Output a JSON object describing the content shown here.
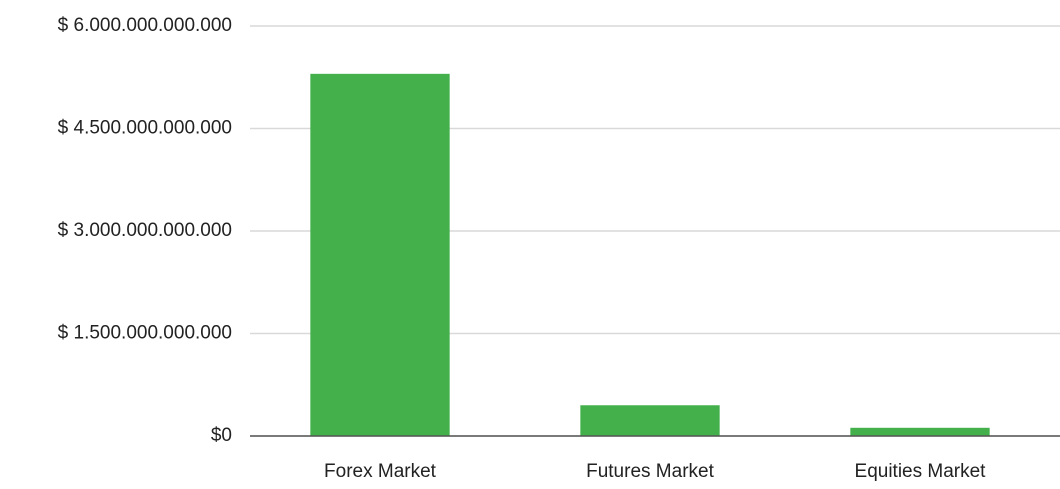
{
  "chart_data": {
    "type": "bar",
    "categories": [
      "Forex Market",
      "Futures Market",
      "Equities Market"
    ],
    "values": [
      5300000000000,
      450000000000,
      120000000000
    ],
    "color": "#43b04b",
    "ylim": [
      0,
      6000000000000
    ],
    "yticks": [
      {
        "value": 0,
        "label": "$0"
      },
      {
        "value": 1500000000000,
        "label": "$ 1.500.000.000.000"
      },
      {
        "value": 3000000000000,
        "label": "$ 3.000.000.000.000"
      },
      {
        "value": 4500000000000,
        "label": "$ 4.500.000.000.000"
      },
      {
        "value": 6000000000000,
        "label": "$ 6.000.000.000.000"
      }
    ],
    "grid": true
  }
}
